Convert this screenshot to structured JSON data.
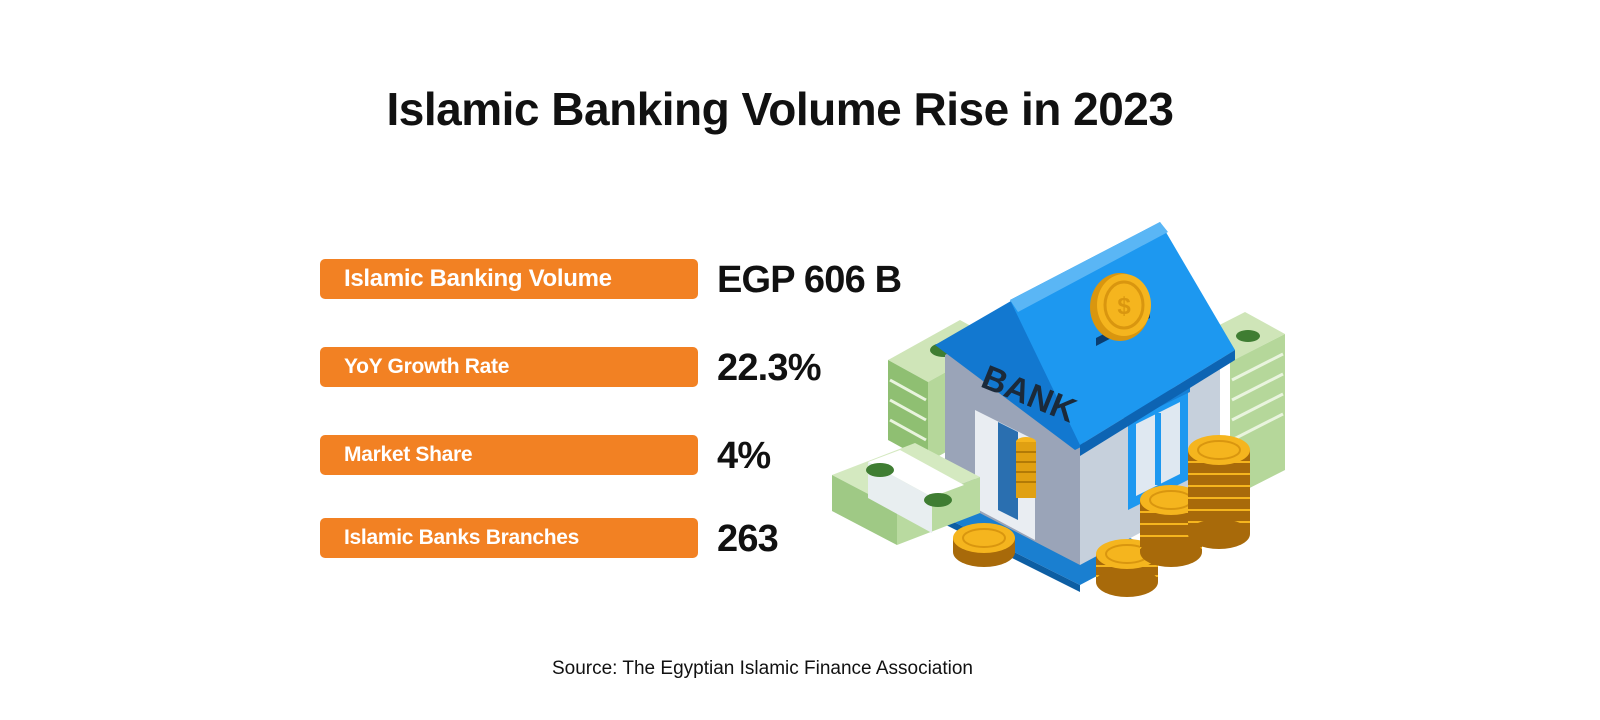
{
  "title": "Islamic Banking Volume Rise in 2023",
  "stats": [
    {
      "label": "Islamic Banking Volume",
      "value": "EGP 606 B"
    },
    {
      "label": "YoY Growth Rate",
      "value": "22.3%"
    },
    {
      "label": "Market Share",
      "value": "4%"
    },
    {
      "label": "Islamic Banks Branches",
      "value": "263"
    }
  ],
  "illustration": {
    "bank_sign": "BANK",
    "coin_symbol": "$"
  },
  "source": "Source: The Egyptian Islamic Finance Association",
  "colors": {
    "label_background": "#f28123",
    "roof": "#1d98f0",
    "coin": "#f5b51e",
    "cash": "#a9d18e"
  }
}
